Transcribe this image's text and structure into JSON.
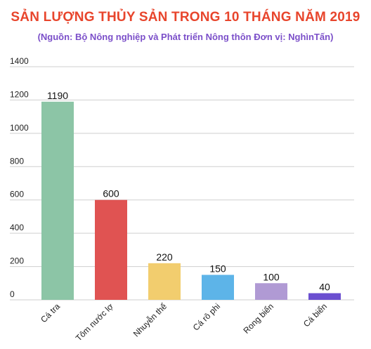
{
  "chart_data": {
    "type": "bar",
    "title": "SẢN LƯỢNG THỦY SẢN TRONG 10 THÁNG NĂM 2019",
    "subtitle": "(Nguồn:  Bộ Nông nghiệp và Phát triển Nông thôn Đơn vị: NghìnTấn)",
    "categories": [
      "Cá tra",
      "Tôm nước lợ",
      "Nhuyễn thể",
      "Cá rô phi",
      "Rong biển",
      "Cá biển"
    ],
    "values": [
      1190,
      600,
      220,
      150,
      100,
      40
    ],
    "data_labels": [
      "1190",
      "600",
      "220",
      "150",
      "100",
      "40"
    ],
    "ylim": [
      0,
      1400
    ],
    "yticks": [
      0,
      200,
      400,
      600,
      800,
      1000,
      1200,
      1400
    ],
    "ytick_labels": [
      "0",
      "200",
      "400",
      "600",
      "800",
      "1000",
      "1200",
      "1400"
    ],
    "grid": true,
    "legend": "none",
    "colors": {
      "title": "#e8452c",
      "subtitle": "#7b4fc9",
      "bars": [
        "#8cc5a6",
        "#e05352",
        "#f2cd6e",
        "#5db4e8",
        "#b09ad4",
        "#6b4fd0"
      ]
    }
  }
}
